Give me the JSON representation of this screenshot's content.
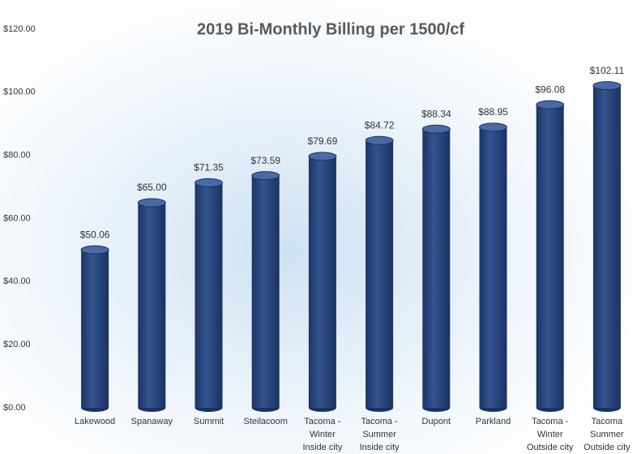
{
  "chart_data": {
    "type": "bar",
    "title": "2019 Bi-Monthly Billing per 1500/cf",
    "categories": [
      [
        "Lakewood"
      ],
      [
        "Spanaway"
      ],
      [
        "Summit"
      ],
      [
        "Steilacoom"
      ],
      [
        "Tacoma -",
        "Winter",
        "Inside city"
      ],
      [
        "Tacoma -",
        "Summer",
        "Inside city"
      ],
      [
        "Dupont"
      ],
      [
        "Parkland"
      ],
      [
        "Tacoma -",
        "Winter",
        "Outside city"
      ],
      [
        "Tacoma",
        "Summer",
        "Outside city"
      ]
    ],
    "values": [
      50.06,
      65.0,
      71.35,
      73.59,
      79.69,
      84.72,
      88.34,
      88.95,
      96.08,
      102.11
    ],
    "value_labels": [
      "$50.06",
      "$65.00",
      "$71.35",
      "$73.59",
      "$79.69",
      "$84.72",
      "$88.34",
      "$88.95",
      "$96.08",
      "$102.11"
    ],
    "color": "#2c4a84",
    "ylim": [
      0,
      120
    ],
    "yticks": [
      {
        "value": 0,
        "label": "$0.00"
      },
      {
        "value": 20,
        "label": "$20.00"
      },
      {
        "value": 40,
        "label": "$40.00"
      },
      {
        "value": 60,
        "label": "$60.00"
      },
      {
        "value": 80,
        "label": "$80.00"
      },
      {
        "value": 100,
        "label": "$100.00"
      },
      {
        "value": 120,
        "label": "$120.00"
      }
    ],
    "grid": false
  }
}
